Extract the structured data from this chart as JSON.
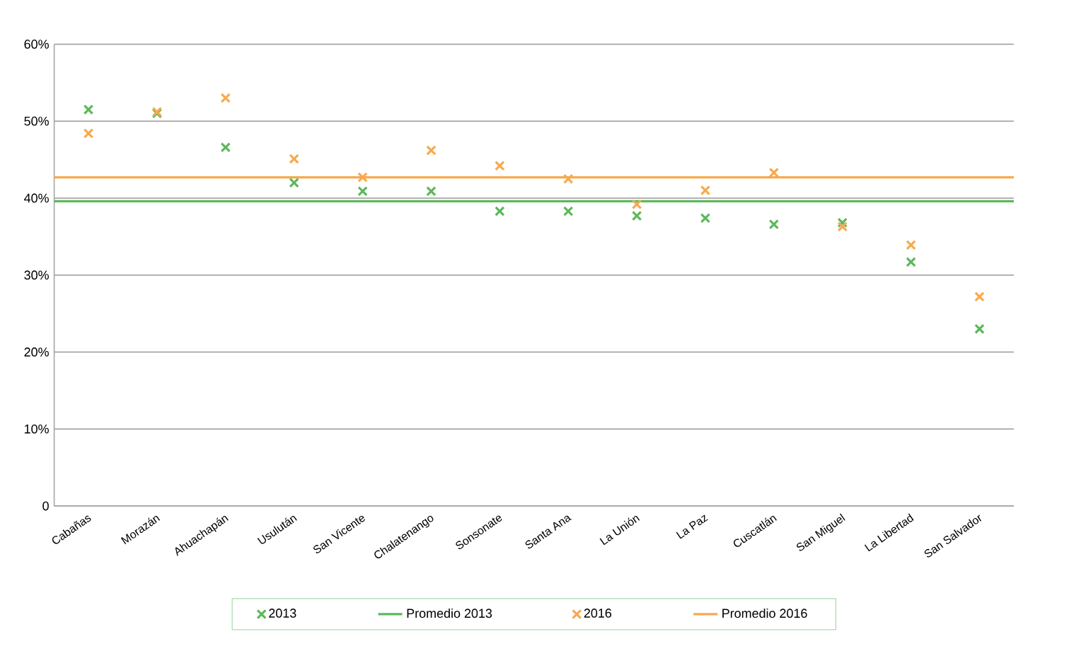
{
  "chart_data": {
    "type": "scatter",
    "categories": [
      "Cabañas",
      "Morazán",
      "Ahuachapán",
      "Usulután",
      "San Vicente",
      "Chalatenango",
      "Sonsonate",
      "Santa Ana",
      "La Unión",
      "La Paz",
      "Cuscatlán",
      "San Miguel",
      "La Libertad",
      "San Salvador"
    ],
    "series": [
      {
        "name": "2013",
        "color": "#5cb85c",
        "values": [
          51.5,
          51.0,
          46.6,
          42.0,
          40.9,
          40.9,
          38.3,
          38.3,
          37.7,
          37.4,
          36.6,
          36.8,
          31.7,
          23.0
        ]
      },
      {
        "name": "2016",
        "color": "#f7a94f",
        "values": [
          48.4,
          51.2,
          53.0,
          45.1,
          42.7,
          46.2,
          44.2,
          42.5,
          39.2,
          41.0,
          43.3,
          36.3,
          33.9,
          27.2
        ]
      }
    ],
    "ref_lines": [
      {
        "axis": "y",
        "value": 39.6,
        "label": "Promedio 2013",
        "color": "#5cb85c"
      },
      {
        "axis": "y",
        "value": 42.7,
        "label": "Promedio 2016",
        "color": "#f7a94f"
      }
    ],
    "ylim": [
      0,
      60
    ],
    "yticks": [
      0,
      {
        "value": 10,
        "label": "10%"
      },
      {
        "value": 20,
        "label": "20%"
      },
      {
        "value": 30,
        "label": "30%"
      },
      {
        "value": 40,
        "label": "40%"
      },
      {
        "value": 50,
        "label": "50%"
      },
      {
        "value": 60,
        "label": "60%"
      }
    ],
    "grid": "y",
    "marker": "cross",
    "legend": "bottom"
  }
}
